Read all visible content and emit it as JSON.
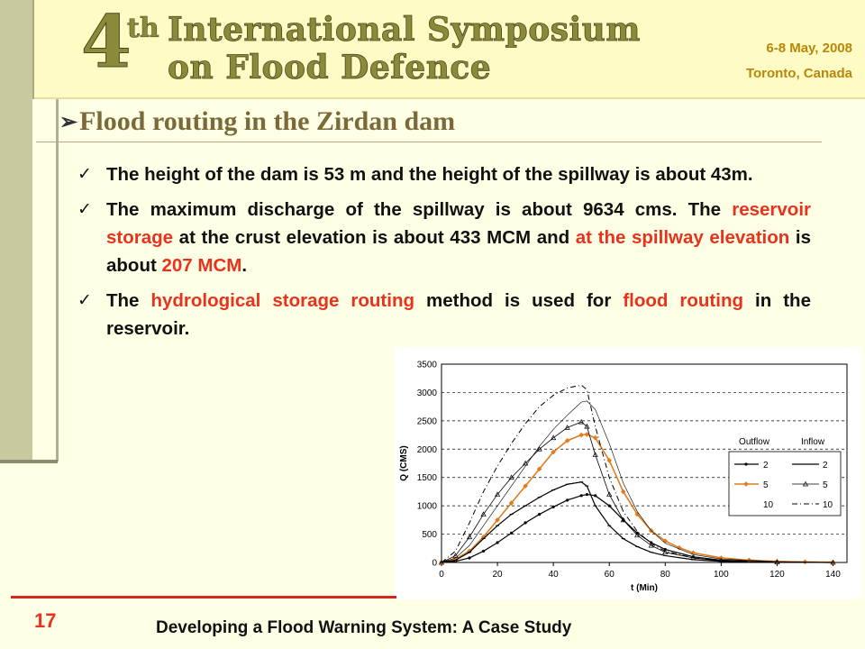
{
  "banner": {
    "ordinal": "4",
    "ordinal_suffix": "th",
    "title_line1": "International Symposium",
    "title_line2": "on Flood Defence",
    "date": "6-8 May, 2008",
    "location": "Toronto, Canada"
  },
  "slide": {
    "title": "Flood routing in the Zirdan dam",
    "bullets": [
      {
        "parts": [
          {
            "text": "The height of the dam is 53 m and the height of the spillway is about 43m.",
            "red": false
          }
        ]
      },
      {
        "parts": [
          {
            "text": "The maximum discharge of the spillway is about 9634 cms. The ",
            "red": false
          },
          {
            "text": "reservoir storage",
            "red": true
          },
          {
            "text": " at the crust elevation is about 433 MCM and ",
            "red": false
          },
          {
            "text": "at the spillway elevation",
            "red": true
          },
          {
            "text": " is about ",
            "red": false
          },
          {
            "text": "207 MCM",
            "red": true
          },
          {
            "text": ".",
            "red": false
          }
        ]
      },
      {
        "parts": [
          {
            "text": "The ",
            "red": false
          },
          {
            "text": "hydrological storage routing",
            "red": true
          },
          {
            "text": " method is used for ",
            "red": false
          },
          {
            "text": "flood routing",
            "red": true
          },
          {
            "text": " in the reservoir.",
            "red": false
          }
        ]
      }
    ],
    "page_number": "17",
    "footer": "Developing a Flood Warning System: A Case Study"
  },
  "colors": {
    "accent_red": "#e8321e",
    "title_brown": "#7a6a3a",
    "series_orange": "#e07b1e"
  },
  "chart_data": {
    "type": "line",
    "xlabel": "t (Min)",
    "ylabel": "Q (CMS)",
    "xlim": [
      0,
      145
    ],
    "ylim": [
      0,
      3500
    ],
    "xticks": [
      0,
      20,
      40,
      60,
      80,
      100,
      120,
      140
    ],
    "yticks": [
      0,
      500,
      1000,
      1500,
      2000,
      2500,
      3000,
      3500
    ],
    "grid": "horizontal dashed",
    "legend": {
      "placement": "right",
      "headers": [
        "Outflow",
        "Inflow"
      ],
      "entries": [
        {
          "outflow": "2",
          "inflow": "2"
        },
        {
          "outflow": "5",
          "inflow": "5"
        },
        {
          "outflow": "10",
          "inflow": "10"
        }
      ]
    },
    "series": [
      {
        "name": "2",
        "group": "Outflow",
        "x": [
          0,
          5,
          10,
          15,
          20,
          25,
          30,
          35,
          40,
          45,
          50,
          52,
          55,
          60,
          65,
          70,
          75,
          80,
          90,
          100,
          120,
          140
        ],
        "y": [
          0,
          20,
          80,
          200,
          350,
          520,
          700,
          850,
          980,
          1100,
          1180,
          1200,
          1180,
          1000,
          750,
          520,
          350,
          230,
          100,
          40,
          10,
          0
        ]
      },
      {
        "name": "5",
        "group": "Outflow",
        "x": [
          0,
          5,
          10,
          15,
          20,
          25,
          30,
          35,
          40,
          45,
          50,
          52,
          55,
          60,
          65,
          70,
          75,
          80,
          85,
          90,
          100,
          110,
          120,
          130,
          140
        ],
        "y": [
          0,
          60,
          200,
          450,
          750,
          1050,
          1350,
          1650,
          1950,
          2150,
          2250,
          2260,
          2200,
          1800,
          1250,
          850,
          560,
          380,
          260,
          170,
          80,
          40,
          20,
          10,
          5
        ]
      },
      {
        "name": "10",
        "group": "Outflow",
        "x": [
          0,
          5,
          10,
          15,
          20,
          25,
          30,
          35,
          40,
          45,
          50,
          52,
          55,
          60,
          65,
          70,
          75,
          80,
          90,
          100,
          120,
          140
        ],
        "y": [
          0,
          80,
          300,
          650,
          1000,
          1350,
          1700,
          2050,
          2350,
          2600,
          2830,
          2850,
          2700,
          2100,
          1400,
          900,
          560,
          340,
          140,
          60,
          15,
          0
        ]
      },
      {
        "name": "2",
        "group": "Inflow",
        "x": [
          0,
          5,
          10,
          15,
          20,
          25,
          30,
          35,
          40,
          45,
          50,
          52,
          55,
          60,
          65,
          70,
          75,
          80,
          90,
          100,
          120,
          140
        ],
        "y": [
          0,
          40,
          180,
          420,
          650,
          850,
          1000,
          1150,
          1280,
          1380,
          1420,
          1350,
          1000,
          650,
          420,
          280,
          180,
          120,
          50,
          20,
          5,
          0
        ]
      },
      {
        "name": "5",
        "group": "Inflow",
        "x": [
          0,
          5,
          10,
          15,
          20,
          25,
          30,
          35,
          40,
          45,
          50,
          52,
          55,
          60,
          65,
          70,
          75,
          80,
          90,
          100,
          120,
          140
        ],
        "y": [
          0,
          120,
          450,
          850,
          1200,
          1500,
          1750,
          2000,
          2200,
          2380,
          2480,
          2400,
          1900,
          1200,
          750,
          480,
          300,
          180,
          80,
          30,
          5,
          0
        ]
      },
      {
        "name": "10",
        "group": "Inflow",
        "x": [
          0,
          5,
          10,
          15,
          20,
          25,
          30,
          35,
          40,
          45,
          50,
          52,
          55,
          60,
          65,
          70,
          75,
          80,
          90,
          100,
          120,
          140
        ],
        "y": [
          0,
          200,
          700,
          1250,
          1700,
          2100,
          2450,
          2750,
          2950,
          3080,
          3130,
          3050,
          2400,
          1500,
          900,
          550,
          330,
          200,
          80,
          30,
          5,
          0
        ]
      }
    ]
  }
}
